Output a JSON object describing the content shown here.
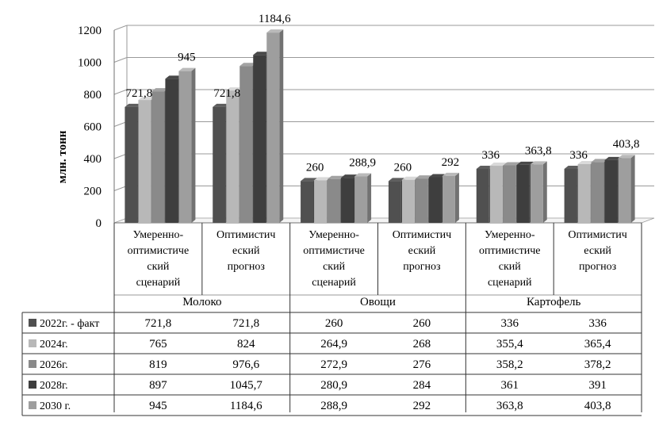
{
  "chart_data": {
    "type": "bar",
    "ylabel": "млн. тонн",
    "ylim": [
      0,
      1200
    ],
    "yticks": [
      0,
      200,
      400,
      600,
      800,
      1000,
      1200
    ],
    "grid": true,
    "legend_placement": "table-left",
    "groups": [
      {
        "label": "Молоко",
        "categories": [
          {
            "label": [
              "Умеренно-",
              "оптимистиче",
              "ский",
              "сценарий"
            ]
          },
          {
            "label": [
              "Оптимистич",
              "еский",
              "прогноз"
            ]
          }
        ]
      },
      {
        "label": "Овощи",
        "categories": [
          {
            "label": [
              "Умеренно-",
              "оптимистиче",
              "ский",
              "сценарий"
            ]
          },
          {
            "label": [
              "Оптимистич",
              "еский",
              "прогноз"
            ]
          }
        ]
      },
      {
        "label": "Картофель",
        "categories": [
          {
            "label": [
              "Умеренно-",
              "оптимистиче",
              "ский",
              "сценарий"
            ]
          },
          {
            "label": [
              "Оптимистич",
              "еский",
              "прогноз"
            ]
          }
        ]
      }
    ],
    "series": [
      {
        "name": "2022г. - факт",
        "color": "#505050",
        "table": [
          "721,8",
          "721,8",
          "260",
          "260",
          "336",
          "336"
        ],
        "values": [
          721.8,
          721.8,
          260,
          260,
          336,
          336
        ]
      },
      {
        "name": "2024г.",
        "color": "#b8b8b8",
        "table": [
          "765",
          "824",
          "264,9",
          "268",
          "355,4",
          "365,4"
        ],
        "values": [
          765,
          824,
          264.9,
          268,
          355.4,
          365.4
        ]
      },
      {
        "name": "2026г.",
        "color": "#8a8a8a",
        "table": [
          "819",
          "976,6",
          "272,9",
          "276",
          "358,2",
          "378,2"
        ],
        "values": [
          819,
          976.6,
          272.9,
          276,
          358.2,
          378.2
        ]
      },
      {
        "name": "2028г.",
        "color": "#3e3e3e",
        "table": [
          "897",
          "1045,7",
          "280,9",
          "284",
          "361",
          "391"
        ],
        "values": [
          897,
          1045.7,
          280.9,
          284,
          361,
          391
        ]
      },
      {
        "name": "2030 г.",
        "color": "#9e9e9e",
        "table": [
          "945",
          "1184,6",
          "288,9",
          "292",
          "363,8",
          "403,8"
        ],
        "values": [
          945,
          1184.6,
          288.9,
          292,
          363.8,
          403.8
        ]
      }
    ],
    "data_labels": [
      {
        "category": 0,
        "first": "721,8",
        "last": "945"
      },
      {
        "category": 1,
        "first": "721,8",
        "last": "1184,6"
      },
      {
        "category": 2,
        "first": "260",
        "last": "288,9"
      },
      {
        "category": 3,
        "first": "260",
        "last": "292"
      },
      {
        "category": 4,
        "first": "336",
        "last": "363,8"
      },
      {
        "category": 5,
        "first": "336",
        "last": "403,8"
      }
    ]
  }
}
